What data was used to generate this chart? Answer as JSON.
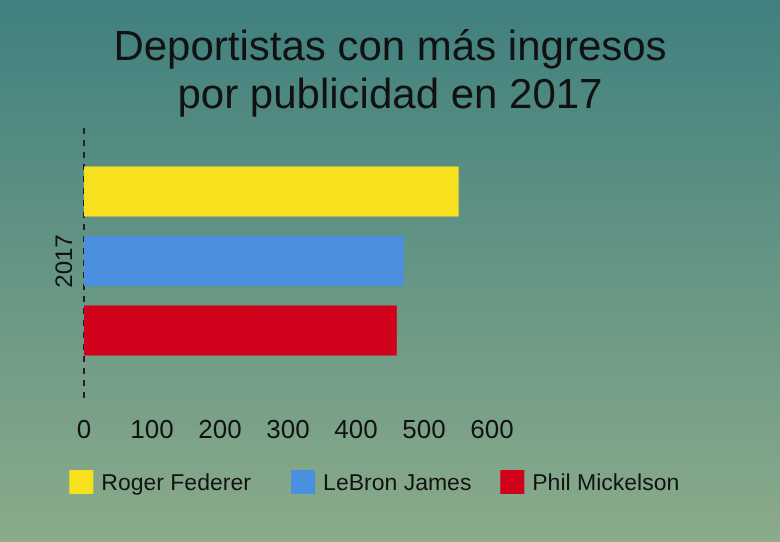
{
  "chart_data": {
    "type": "bar",
    "orientation": "horizontal",
    "title": "Deportistas con más ingresos\npor publicidad en 2017",
    "categories": [
      "2017"
    ],
    "series": [
      {
        "name": "Roger Federer",
        "color": "#f7e11e",
        "values": [
          551
        ]
      },
      {
        "name": "LeBron James",
        "color": "#4a8fe0",
        "values": [
          470
        ]
      },
      {
        "name": "Phil Mickelson",
        "color": "#d0011b",
        "values": [
          460
        ]
      }
    ],
    "xlim": [
      0,
      600
    ],
    "xticks": [
      0,
      100,
      200,
      300,
      400,
      500,
      600
    ],
    "legend": "bottom"
  }
}
